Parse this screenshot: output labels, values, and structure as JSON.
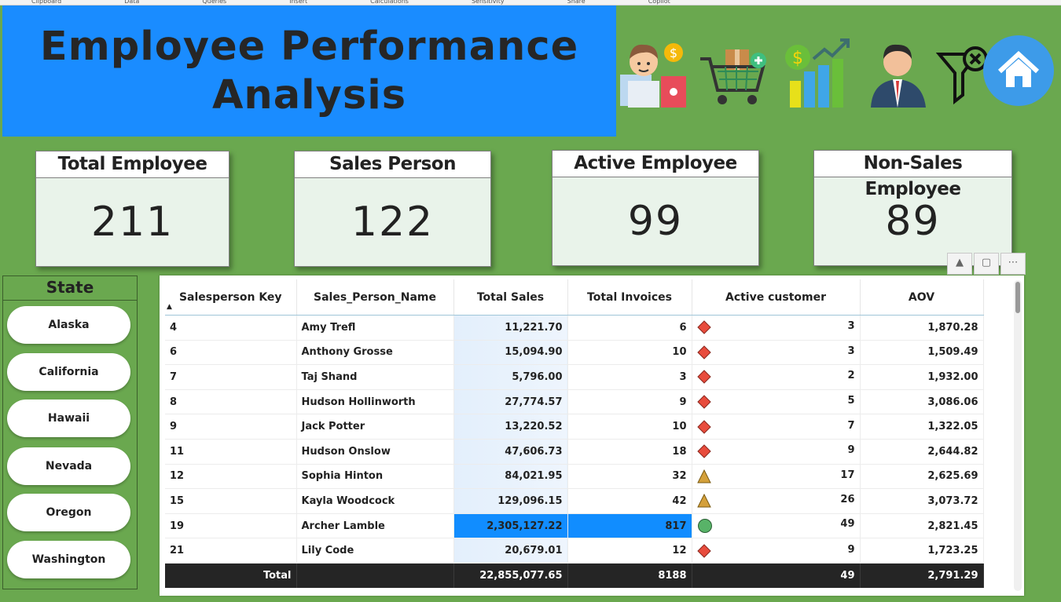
{
  "ribbon": [
    "Clipboard",
    "Data",
    "Queries",
    "Insert",
    "Calculations",
    "Sensitivity",
    "Share",
    "Copilot"
  ],
  "title": "Employee Performance Analysis",
  "nav_icons": [
    "salesperson-icon",
    "shopping-cart-icon",
    "sales-growth-icon",
    "employee-icon",
    "clear-filter-icon",
    "home-icon"
  ],
  "kpis": [
    {
      "label": "Total Employee",
      "value": "211"
    },
    {
      "label": "Sales Person",
      "value": "122"
    },
    {
      "label": "Active Employee",
      "value": "99"
    },
    {
      "label": "Non-Sales Employee",
      "value": "89"
    }
  ],
  "state_slicer": {
    "title": "State",
    "items": [
      "Alaska",
      "California",
      "Hawaii",
      "Nevada",
      "Oregon",
      "Washington"
    ]
  },
  "table": {
    "columns": [
      "Salesperson Key",
      "Sales_Person_Name",
      "Total Sales",
      "Total Invoices",
      "Active customer",
      "AOV"
    ],
    "rows": [
      {
        "key": "4",
        "name": "Amy Trefl",
        "sales": "11,221.70",
        "invoices": "6",
        "indicator": "red-diamond",
        "active": "3",
        "aov": "1,870.28"
      },
      {
        "key": "6",
        "name": "Anthony Grosse",
        "sales": "15,094.90",
        "invoices": "10",
        "indicator": "red-diamond",
        "active": "3",
        "aov": "1,509.49"
      },
      {
        "key": "7",
        "name": "Taj Shand",
        "sales": "5,796.00",
        "invoices": "3",
        "indicator": "red-diamond",
        "active": "2",
        "aov": "1,932.00"
      },
      {
        "key": "8",
        "name": "Hudson Hollinworth",
        "sales": "27,774.57",
        "invoices": "9",
        "indicator": "red-diamond",
        "active": "5",
        "aov": "3,086.06"
      },
      {
        "key": "9",
        "name": "Jack Potter",
        "sales": "13,220.52",
        "invoices": "10",
        "indicator": "red-diamond",
        "active": "7",
        "aov": "1,322.05"
      },
      {
        "key": "11",
        "name": "Hudson Onslow",
        "sales": "47,606.73",
        "invoices": "18",
        "indicator": "red-diamond",
        "active": "9",
        "aov": "2,644.82"
      },
      {
        "key": "12",
        "name": "Sophia Hinton",
        "sales": "84,021.95",
        "invoices": "32",
        "indicator": "amber-triangle",
        "active": "17",
        "aov": "2,625.69"
      },
      {
        "key": "15",
        "name": "Kayla Woodcock",
        "sales": "129,096.15",
        "invoices": "42",
        "indicator": "amber-triangle",
        "active": "26",
        "aov": "3,073.72"
      },
      {
        "key": "19",
        "name": "Archer Lamble",
        "sales": "2,305,127.22",
        "invoices": "817",
        "indicator": "green-circle",
        "active": "49",
        "aov": "2,821.45",
        "selected": true
      },
      {
        "key": "21",
        "name": "Lily Code",
        "sales": "20,679.01",
        "invoices": "12",
        "indicator": "red-diamond",
        "active": "9",
        "aov": "1,723.25"
      }
    ],
    "total": {
      "label": "Total",
      "sales": "22,855,077.65",
      "invoices": "8188",
      "active": "49",
      "aov": "2,791.29"
    }
  },
  "colors": {
    "background": "#6aa84f",
    "title_bg": "#1a8cff",
    "selected_cell": "#118dff",
    "red": "#e84c3d",
    "amber": "#d4a03a",
    "green": "#58b368"
  }
}
